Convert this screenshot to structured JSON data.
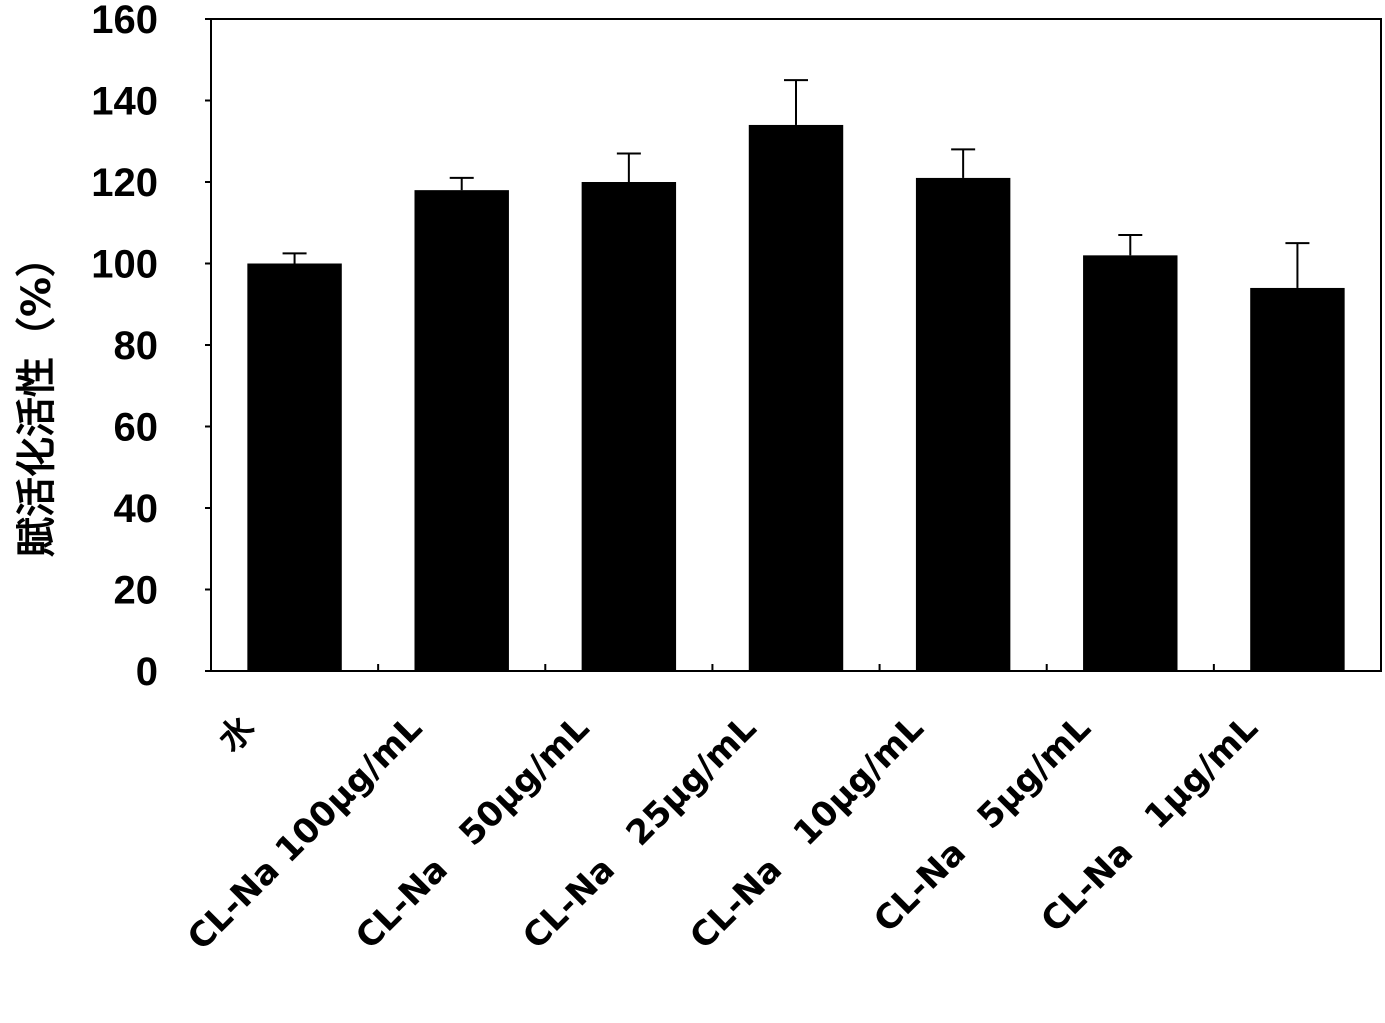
{
  "chart_data": {
    "type": "bar",
    "title": "",
    "xlabel": "",
    "ylabel": "賦活化活性（%）",
    "ylim": [
      0,
      160
    ],
    "yticks": [
      0,
      20,
      40,
      60,
      80,
      100,
      120,
      140,
      160
    ],
    "categories": [
      "水",
      "CL-Na 100μg/mL",
      "CL-Na　50μg/mL",
      "CL-Na　25μg/mL",
      "CL-Na　10μg/mL",
      "CL-Na　5μg/mL",
      "CL-Na　1μg/mL"
    ],
    "values": [
      100,
      118,
      120,
      134,
      121,
      102,
      94
    ],
    "errors": [
      2.5,
      3,
      7,
      11,
      7,
      5,
      11
    ],
    "bar_color": "#000000",
    "grid": false
  }
}
